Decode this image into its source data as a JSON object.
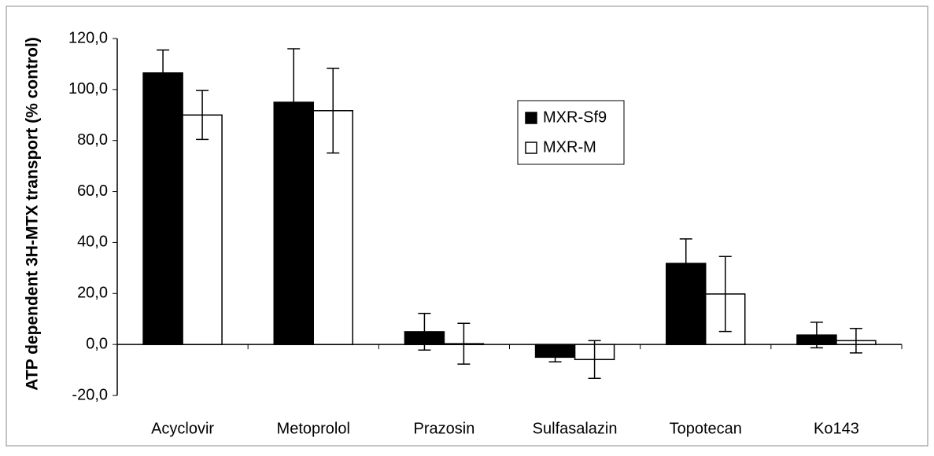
{
  "chart_data": {
    "type": "bar",
    "y_label": "ATP dependent 3H-MTX transport (% control)",
    "categories": [
      "Acyclovir",
      "Metoprolol",
      "Prazosin",
      "Sulfasalazin",
      "Topotecan",
      "Ko143"
    ],
    "series": [
      {
        "name": "MXR-Sf9",
        "color": "#000000",
        "values": [
          106.5,
          95,
          5,
          -5,
          31.8,
          3.7
        ],
        "errors": [
          9,
          21,
          7.2,
          1.8,
          9.6,
          5
        ]
      },
      {
        "name": "MXR-M",
        "color": "#ffffff",
        "values": [
          90,
          91.7,
          0.3,
          -5.9,
          19.8,
          1.5
        ],
        "errors": [
          9.6,
          16.6,
          8,
          7.4,
          14.7,
          4.8
        ]
      }
    ],
    "ylim": [
      -20,
      120
    ],
    "yticks": [
      {
        "value": -20,
        "label": "-20,0"
      },
      {
        "value": 0,
        "label": "0,0"
      },
      {
        "value": 20,
        "label": "20,0"
      },
      {
        "value": 40,
        "label": "40,0"
      },
      {
        "value": 60,
        "label": "60,0"
      },
      {
        "value": 80,
        "label": "80,0"
      },
      {
        "value": 100,
        "label": "100,0"
      },
      {
        "value": 120,
        "label": "120,0"
      }
    ],
    "grid": false
  }
}
